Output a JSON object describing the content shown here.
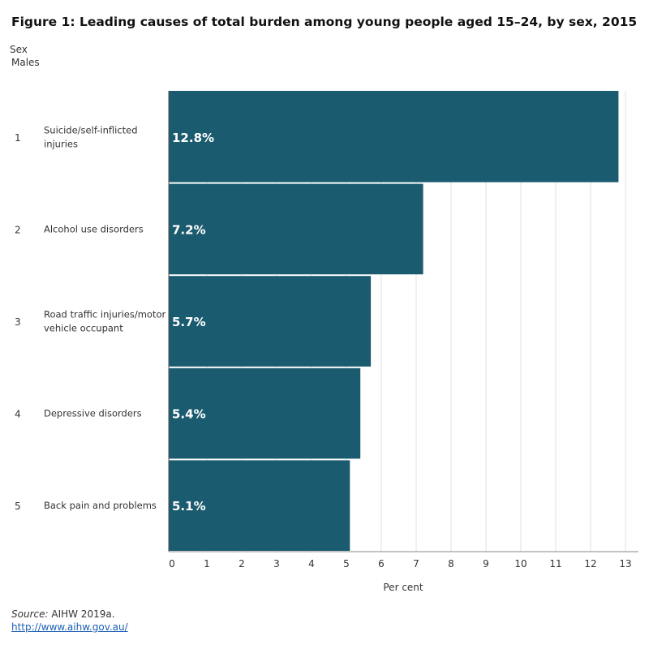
{
  "header": {
    "title": "Figure 1: Leading causes of total burden among young people aged 15–24, by sex, 2015",
    "filter_label": "Sex",
    "filter_value": "Males"
  },
  "footer": {
    "source_label": "Source:",
    "source_text": "AIHW 2019a.",
    "link_text": "http://www.aihw.gov.au/"
  },
  "colors": {
    "bar": "#1b5b70",
    "grid": "#e2e2e2",
    "axis": "#8a8a8a",
    "label_text": "#ffffff"
  },
  "chart_data": {
    "type": "bar",
    "orientation": "horizontal",
    "title": "Figure 1: Leading causes of total burden among young people aged 15–24, by sex, 2015",
    "xlabel": "Per cent",
    "ylabel": "",
    "xlim": [
      0,
      13.5
    ],
    "xticks": [
      0,
      1,
      2,
      3,
      4,
      5,
      6,
      7,
      8,
      9,
      10,
      11,
      12,
      13
    ],
    "grid": true,
    "ranks": [
      "1",
      "2",
      "3",
      "4",
      "5"
    ],
    "categories": [
      [
        "Suicide/self-inflicted",
        "injuries"
      ],
      [
        "Alcohol use disorders"
      ],
      [
        "Road traffic injuries/motor",
        "vehicle occupant"
      ],
      [
        "Depressive disorders"
      ],
      [
        "Back pain and problems"
      ]
    ],
    "values": [
      12.8,
      7.2,
      5.7,
      5.4,
      5.1
    ],
    "value_labels": [
      "12.8%",
      "7.2%",
      "5.7%",
      "5.4%",
      "5.1%"
    ]
  }
}
